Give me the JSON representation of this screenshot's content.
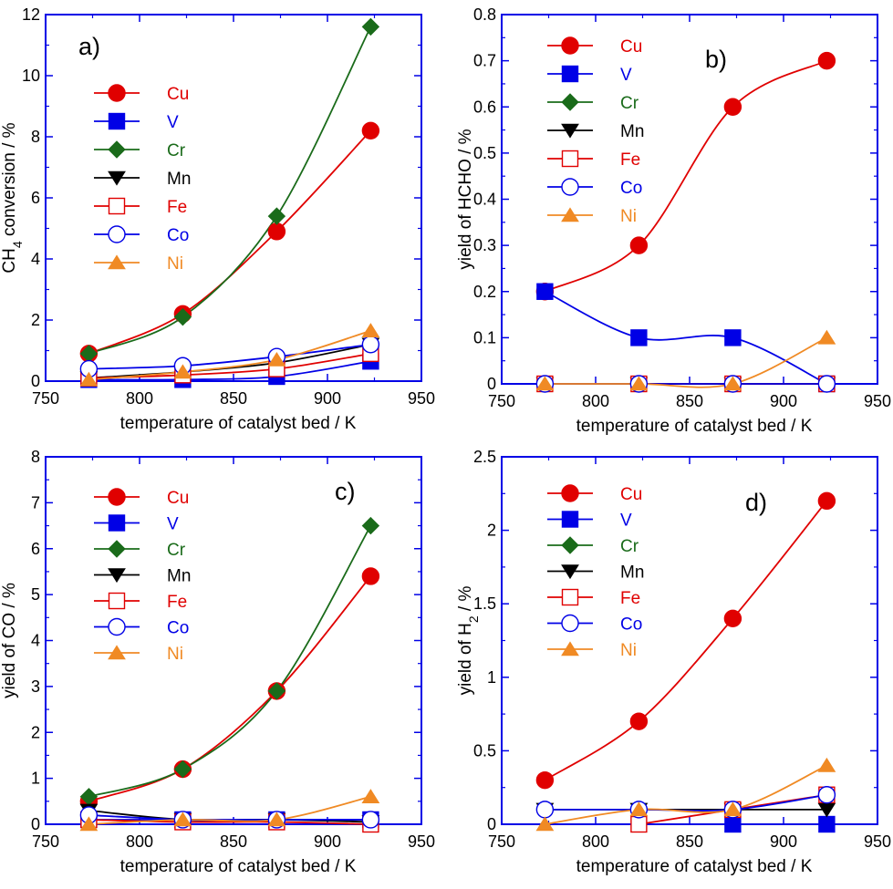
{
  "chart_data": [
    {
      "type": "line",
      "panel_label": "a)",
      "xlabel": "temperature of catalyst bed / K",
      "ylabel": "CH4 conversion / %",
      "xlim": [
        750,
        950
      ],
      "ylim": [
        0,
        12
      ],
      "xticks": [
        750,
        800,
        850,
        900,
        950
      ],
      "yticks": [
        0,
        2,
        4,
        6,
        8,
        10,
        12
      ],
      "x": [
        773,
        823,
        873,
        923
      ],
      "series": [
        {
          "name": "Cu",
          "values": [
            0.9,
            2.2,
            4.9,
            8.2
          ]
        },
        {
          "name": "V",
          "values": [
            0.05,
            0.05,
            0.15,
            0.65
          ]
        },
        {
          "name": "Cr",
          "values": [
            0.9,
            2.1,
            5.4,
            11.6
          ]
        },
        {
          "name": "Mn",
          "values": [
            0.1,
            0.3,
            0.6,
            1.2
          ]
        },
        {
          "name": "Fe",
          "values": [
            0.1,
            0.2,
            0.4,
            0.9
          ]
        },
        {
          "name": "Co",
          "values": [
            0.4,
            0.5,
            0.8,
            1.2
          ]
        },
        {
          "name": "Ni",
          "values": [
            0.05,
            0.3,
            0.7,
            1.65
          ]
        }
      ],
      "legend_position": "left"
    },
    {
      "type": "line",
      "panel_label": "b)",
      "xlabel": "temperature of catalyst bed / K",
      "ylabel": "yield of HCHO / %",
      "xlim": [
        750,
        950
      ],
      "ylim": [
        0,
        0.8
      ],
      "xticks": [
        750,
        800,
        850,
        900,
        950
      ],
      "yticks": [
        0,
        0.1,
        0.2,
        0.3,
        0.4,
        0.5,
        0.6,
        0.7,
        0.8
      ],
      "x": [
        773,
        823,
        873,
        923
      ],
      "series": [
        {
          "name": "Cu",
          "values": [
            0.2,
            0.3,
            0.6,
            0.7
          ]
        },
        {
          "name": "V",
          "values": [
            0.2,
            0.1,
            0.1,
            0
          ]
        },
        {
          "name": "Cr",
          "values": [
            0,
            0,
            0,
            0
          ]
        },
        {
          "name": "Mn",
          "values": [
            0,
            0,
            0,
            0
          ]
        },
        {
          "name": "Fe",
          "values": [
            0,
            0,
            0,
            0
          ]
        },
        {
          "name": "Co",
          "values": [
            0,
            0,
            0,
            0
          ]
        },
        {
          "name": "Ni",
          "values": [
            0,
            0,
            0,
            0.1
          ]
        }
      ],
      "legend_position": "top-left"
    },
    {
      "type": "line",
      "panel_label": "c)",
      "xlabel": "temperature of catalyst bed / K",
      "ylabel": "yield of CO / %",
      "xlim": [
        750,
        950
      ],
      "ylim": [
        0,
        8
      ],
      "xticks": [
        750,
        800,
        850,
        900,
        950
      ],
      "yticks": [
        0,
        1,
        2,
        3,
        4,
        5,
        6,
        7,
        8
      ],
      "x": [
        773,
        823,
        873,
        923
      ],
      "series": [
        {
          "name": "Cu",
          "values": [
            0.5,
            1.2,
            2.9,
            5.4
          ]
        },
        {
          "name": "V",
          "values": [
            0.1,
            0.1,
            0.1,
            0.1
          ]
        },
        {
          "name": "Cr",
          "values": [
            0.6,
            1.2,
            2.9,
            6.5
          ]
        },
        {
          "name": "Mn",
          "values": [
            0.3,
            0.1,
            0.1,
            0.05
          ]
        },
        {
          "name": "Fe",
          "values": [
            0.1,
            0.05,
            0.05,
            0
          ]
        },
        {
          "name": "Co",
          "values": [
            0.2,
            0.1,
            0.1,
            0.1
          ]
        },
        {
          "name": "Ni",
          "values": [
            0,
            0.1,
            0.1,
            0.6
          ]
        }
      ],
      "legend_position": "left"
    },
    {
      "type": "line",
      "panel_label": "d)",
      "xlabel": "temperature of catalyst bed / K",
      "ylabel": "yield of H2 / %",
      "xlim": [
        750,
        950
      ],
      "ylim": [
        0,
        2.5
      ],
      "xticks": [
        750,
        800,
        850,
        900,
        950
      ],
      "yticks": [
        0,
        0.5,
        1,
        1.5,
        2,
        2.5
      ],
      "x": [
        773,
        823,
        873,
        923
      ],
      "series": [
        {
          "name": "Cu",
          "values": [
            0.3,
            0.7,
            1.4,
            2.2
          ]
        },
        {
          "name": "V",
          "values": [
            null,
            null,
            0,
            0
          ]
        },
        {
          "name": "Cr",
          "values": [
            null,
            null,
            null,
            null
          ]
        },
        {
          "name": "Mn",
          "values": [
            0.1,
            0.1,
            0.1,
            0.1
          ]
        },
        {
          "name": "Fe",
          "values": [
            null,
            0,
            0.1,
            0.2
          ]
        },
        {
          "name": "Co",
          "values": [
            0.1,
            0.1,
            0.1,
            0.2
          ]
        },
        {
          "name": "Ni",
          "values": [
            0,
            0.1,
            0.1,
            0.4
          ]
        }
      ],
      "legend_position": "top-left"
    }
  ],
  "series_styles": {
    "Cu": {
      "color": "#e00000",
      "marker": "circle",
      "filled": true
    },
    "V": {
      "color": "#0000e6",
      "marker": "square",
      "filled": true
    },
    "Cr": {
      "color": "#1a6b1a",
      "marker": "diamond",
      "filled": true
    },
    "Mn": {
      "color": "#000000",
      "marker": "triangle-down",
      "filled": true
    },
    "Fe": {
      "color": "#e00000",
      "marker": "square",
      "filled": false
    },
    "Co": {
      "color": "#0000e6",
      "marker": "circle",
      "filled": false
    },
    "Ni": {
      "color": "#f08a24",
      "marker": "triangle-up",
      "filled": true
    }
  },
  "colors": {
    "axis": "#0000e6",
    "text": "#000000"
  }
}
